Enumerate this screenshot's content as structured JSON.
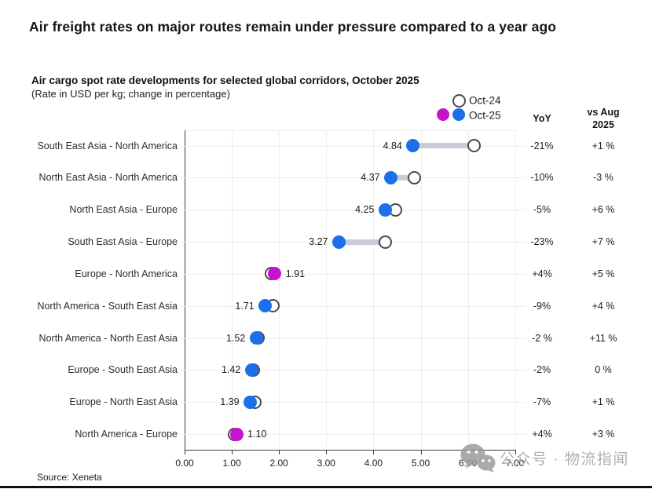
{
  "title": "Air freight rates on major routes remain under pressure compared to a year ago",
  "subtitle": "Air cargo spot rate developments for selected global corridors, October 2025",
  "subtitle_note": "(Rate in USD per kg; change in percentage)",
  "source": "Source: Xeneta",
  "watermark": {
    "icon": "wechat-icon",
    "text": "公众号 · 物流指闻"
  },
  "legend": {
    "oct24_label": "Oct-24",
    "oct25_label": "Oct-25"
  },
  "columns": {
    "yoy_header": "YoY",
    "vs_aug_header_line1": "vs Aug",
    "vs_aug_header_line2": "2025"
  },
  "colors": {
    "oct25_blue": "#1b6fe8",
    "oct25_magenta": "#c513ce",
    "oct24_fill": "#ffffff",
    "oct24_border": "#4a4a4a",
    "connector": "#c8ccd5",
    "grid": "#ededed",
    "axis": "#3c3c3c"
  },
  "chart_data": {
    "type": "dumbbell",
    "title": "Air cargo spot rate developments for selected global corridors, October 2025",
    "xlabel": "Rate in USD per kg",
    "xlim": [
      0,
      7
    ],
    "x_ticks": [
      "0.00",
      "1.00",
      "2.00",
      "3.00",
      "4.00",
      "5.00",
      "6.00",
      "7.00"
    ],
    "grid": true,
    "legend_position": "top-right",
    "series_names": [
      "Oct-24",
      "Oct-25"
    ],
    "rows": [
      {
        "route": "South East Asia - North America",
        "oct25": 4.84,
        "oct25_label": "4.84",
        "oct24_est": 6.13,
        "oct25_color": "blue",
        "value_label_side": "left",
        "yoy": "-21%",
        "vs_aug": "+1 %"
      },
      {
        "route": "North East Asia - North America",
        "oct25": 4.37,
        "oct25_label": "4.37",
        "oct24_est": 4.86,
        "oct25_color": "blue",
        "value_label_side": "left",
        "yoy": "-10%",
        "vs_aug": "-3 %"
      },
      {
        "route": "North East Asia - Europe",
        "oct25": 4.25,
        "oct25_label": "4.25",
        "oct24_est": 4.47,
        "oct25_color": "blue",
        "value_label_side": "left",
        "yoy": "-5%",
        "vs_aug": "+6 %"
      },
      {
        "route": "South East Asia - Europe",
        "oct25": 3.27,
        "oct25_label": "3.27",
        "oct24_est": 4.25,
        "oct25_color": "blue",
        "value_label_side": "left",
        "yoy": "-23%",
        "vs_aug": "+7 %"
      },
      {
        "route": "Europe - North America",
        "oct25": 1.91,
        "oct25_label": "1.91",
        "oct24_est": 1.84,
        "oct25_color": "magenta",
        "value_label_side": "right",
        "yoy": "+4%",
        "vs_aug": "+5 %"
      },
      {
        "route": "North America - South East Asia",
        "oct25": 1.71,
        "oct25_label": "1.71",
        "oct24_est": 1.88,
        "oct25_color": "blue",
        "value_label_side": "left",
        "yoy": "-9%",
        "vs_aug": "+4 %"
      },
      {
        "route": "North America - North East Asia",
        "oct25": 1.52,
        "oct25_label": "1.52",
        "oct24_est": 1.55,
        "oct25_color": "blue",
        "value_label_side": "left",
        "yoy": "-2 %",
        "vs_aug": "+11 %"
      },
      {
        "route": "Europe - South East Asia",
        "oct25": 1.42,
        "oct25_label": "1.42",
        "oct24_est": 1.45,
        "oct25_color": "blue",
        "value_label_side": "left",
        "yoy": "-2%",
        "vs_aug": "0 %"
      },
      {
        "route": "Europe - North East Asia",
        "oct25": 1.39,
        "oct25_label": "1.39",
        "oct24_est": 1.49,
        "oct25_color": "blue",
        "value_label_side": "left",
        "yoy": "-7%",
        "vs_aug": "+1 %"
      },
      {
        "route": "North America - Europe",
        "oct25": 1.1,
        "oct25_label": "1.10",
        "oct24_est": 1.06,
        "oct25_color": "magenta",
        "value_label_side": "right",
        "yoy": "+4%",
        "vs_aug": "+3 %"
      }
    ]
  }
}
